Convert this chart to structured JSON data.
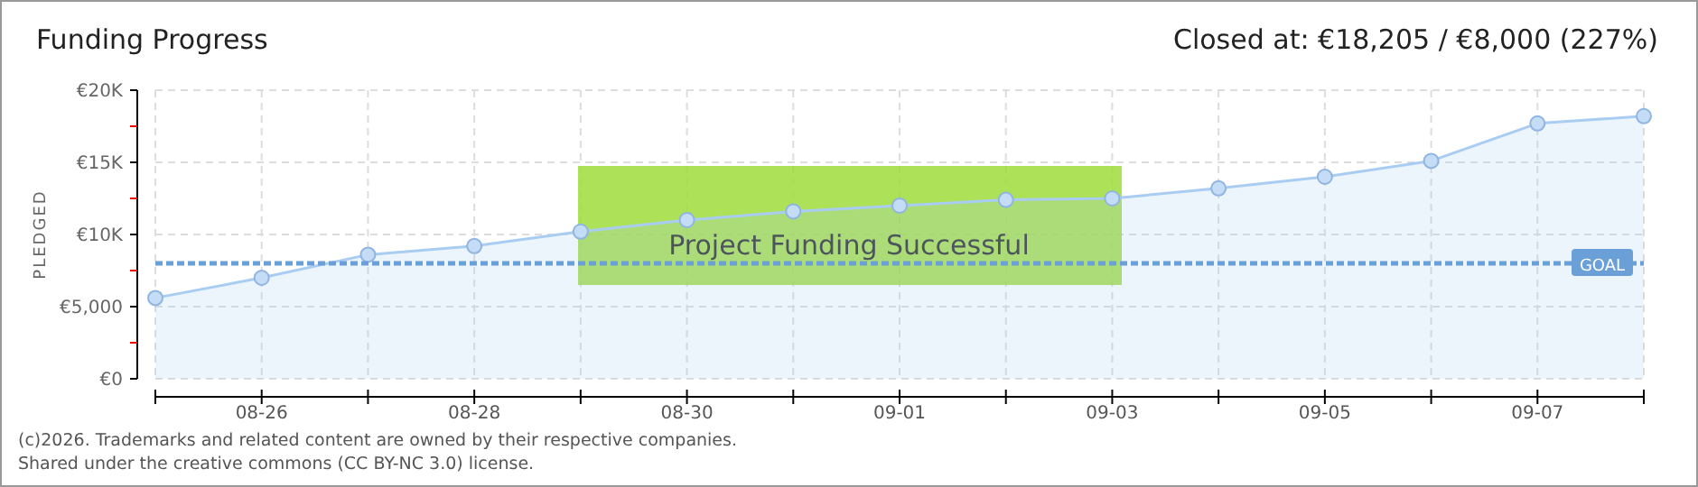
{
  "chart_data": {
    "type": "area",
    "title": "Funding Progress",
    "subtitle": "Closed at:  €18,205 / €8,000 (227%)",
    "ylabel": "PLEDGED",
    "categories": [
      null,
      "08-26",
      null,
      "08-28",
      null,
      "08-30",
      null,
      "09-01",
      null,
      "09-03",
      null,
      "09-05",
      null,
      "09-07",
      null
    ],
    "series": [
      {
        "color": "#a9cdf2",
        "values": [
          5600,
          7000,
          8600,
          9200,
          10200,
          11000,
          11600,
          12000,
          12400,
          12500,
          13200,
          14000,
          15100,
          17700,
          18200
        ]
      }
    ],
    "ylim": [
      0,
      20000
    ],
    "yticks": [
      {
        "value": 0,
        "label": "€0"
      },
      {
        "value": 2500,
        "label": null
      },
      {
        "value": 5000,
        "label": "€5,000"
      },
      {
        "value": 7500,
        "label": null
      },
      {
        "value": 10000,
        "label": "€10K"
      },
      {
        "value": 12500,
        "label": null
      },
      {
        "value": 15000,
        "label": "€15K"
      },
      {
        "value": 17500,
        "label": null
      },
      {
        "value": 20000,
        "label": "€20K"
      }
    ],
    "grid": true,
    "marker": "circle",
    "ref_lines": [
      {
        "axis": "y",
        "value": 8000,
        "label": "GOAL",
        "color": "#6a9fd8",
        "line_style": "dashed"
      }
    ],
    "annotations": [
      "Project Funding Successful",
      "(c)2026. Trademarks and related content are owned by their respective companies.",
      "Shared under the creative commons (CC BY-NC 3.0) license."
    ]
  }
}
